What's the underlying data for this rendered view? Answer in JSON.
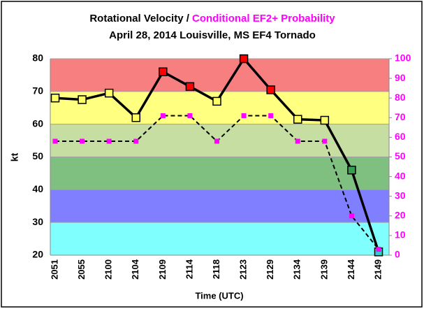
{
  "chart_data": {
    "type": "line",
    "title": "Rotational Velocity / ",
    "title_highlight": "Conditional EF2+ Probability",
    "subtitle": "April 28, 2014 Louisville, MS EF4 Tornado",
    "y_label": "kt",
    "x_label": "Time (UTC)",
    "categories": [
      "2051",
      "2055",
      "2100",
      "2104",
      "2109",
      "2114",
      "2118",
      "2123",
      "2129",
      "2134",
      "2139",
      "2144",
      "2149"
    ],
    "series": [
      {
        "name": "Rotational Velocity",
        "color": "#000000",
        "values": [
          68,
          67.5,
          69.5,
          62,
          76,
          71.5,
          67,
          80,
          70.5,
          61.5,
          61.2,
          46,
          21
        ],
        "marker_colors": [
          "#ffff66",
          "#ffff66",
          "#ffff66",
          "#ffff66",
          "#ff0000",
          "#ff0000",
          "#ffff66",
          "#ff0000",
          "#ff0000",
          "#ffff66",
          "#ffff66",
          "#33a050",
          "#33cccc"
        ]
      },
      {
        "name": "Conditional EF2+ Probability",
        "color": "#ff00ff",
        "axis": "y2",
        "values": [
          58,
          58,
          58,
          58,
          71,
          71,
          58,
          71,
          71,
          58,
          58,
          20,
          3
        ]
      }
    ],
    "bands": [
      {
        "from": 70,
        "to": 80,
        "color": "#f77f7f"
      },
      {
        "from": 60,
        "to": 70,
        "color": "#ffff80"
      },
      {
        "from": 50,
        "to": 60,
        "color": "#c6dea2"
      },
      {
        "from": 40,
        "to": 50,
        "color": "#7fbf7f"
      },
      {
        "from": 30,
        "to": 40,
        "color": "#7f7fff"
      },
      {
        "from": 20,
        "to": 30,
        "color": "#80ffff"
      }
    ],
    "ylim": [
      20,
      80
    ],
    "yticks": [
      20,
      30,
      40,
      50,
      60,
      70,
      80
    ],
    "y2lim": [
      0,
      100
    ],
    "y2ticks": [
      0,
      10,
      20,
      30,
      40,
      50,
      60,
      70,
      80,
      90,
      100
    ],
    "grid": true
  }
}
